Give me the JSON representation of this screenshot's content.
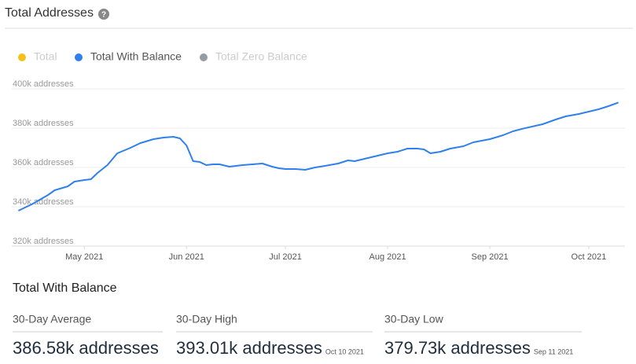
{
  "header": {
    "title": "Total Addresses",
    "help_icon": "?"
  },
  "chart_data": {
    "type": "line",
    "legend": [
      {
        "name": "Total",
        "color": "#f5b800",
        "active": false
      },
      {
        "name": "Total With Balance",
        "color": "#2f80ed",
        "active": true
      },
      {
        "name": "Total Zero Balance",
        "color": "#8a9099",
        "active": false
      }
    ],
    "x": [
      "2021-04-11",
      "2021-04-15",
      "2021-04-20",
      "2021-04-22",
      "2021-04-26",
      "2021-04-28",
      "2021-05-01",
      "2021-05-03",
      "2021-05-05",
      "2021-05-08",
      "2021-05-11",
      "2021-05-15",
      "2021-05-18",
      "2021-05-22",
      "2021-05-25",
      "2021-05-28",
      "2021-05-30",
      "2021-06-01",
      "2021-06-03",
      "2021-06-05",
      "2021-06-07",
      "2021-06-09",
      "2021-06-11",
      "2021-06-14",
      "2021-06-16",
      "2021-06-18",
      "2021-06-21",
      "2021-06-24",
      "2021-06-27",
      "2021-06-29",
      "2021-07-01",
      "2021-07-04",
      "2021-07-07",
      "2021-07-10",
      "2021-07-13",
      "2021-07-17",
      "2021-07-20",
      "2021-07-22",
      "2021-07-25",
      "2021-07-29",
      "2021-08-01",
      "2021-08-04",
      "2021-08-07",
      "2021-08-10",
      "2021-08-12",
      "2021-08-14",
      "2021-08-17",
      "2021-08-20",
      "2021-08-24",
      "2021-08-27",
      "2021-09-01",
      "2021-09-05",
      "2021-09-08",
      "2021-09-11",
      "2021-09-17",
      "2021-09-21",
      "2021-09-24",
      "2021-09-28",
      "2021-10-01",
      "2021-10-04",
      "2021-10-07",
      "2021-10-10"
    ],
    "series": [
      {
        "color": "#2f80ed",
        "values": [
          338000,
          341200,
          346000,
          348400,
          350400,
          352800,
          353600,
          354000,
          357200,
          361200,
          367200,
          370000,
          372400,
          374400,
          375200,
          375600,
          374800,
          371200,
          363200,
          362800,
          361200,
          361600,
          361600,
          360400,
          360800,
          361200,
          361600,
          362000,
          360400,
          359600,
          359200,
          359200,
          358800,
          360000,
          360800,
          362000,
          363600,
          363200,
          364400,
          366000,
          367200,
          368000,
          369600,
          369600,
          369200,
          367200,
          368000,
          369600,
          370800,
          372800,
          374400,
          376400,
          378400,
          379730,
          382000,
          384400,
          386000,
          387200,
          388400,
          389600,
          391200,
          393010
        ]
      }
    ],
    "xlim": [
      "2021-04-09",
      "2021-10-12"
    ],
    "xticks": [
      {
        "value": "2021-05-01",
        "label": "May 2021"
      },
      {
        "value": "2021-06-01",
        "label": "Jun 2021"
      },
      {
        "value": "2021-07-01",
        "label": "Jul 2021"
      },
      {
        "value": "2021-08-01",
        "label": "Aug 2021"
      },
      {
        "value": "2021-09-01",
        "label": "Sep 2021"
      },
      {
        "value": "2021-10-01",
        "label": "Oct 2021"
      }
    ],
    "ylim": [
      320000,
      400000
    ],
    "yticks": [
      {
        "value": 320000,
        "label": "320k addresses"
      },
      {
        "value": 340000,
        "label": "340k addresses"
      },
      {
        "value": 360000,
        "label": "360k addresses"
      },
      {
        "value": 380000,
        "label": "380k addresses"
      },
      {
        "value": 400000,
        "label": "400k addresses"
      }
    ],
    "grid": true
  },
  "stats": {
    "title": "Total With Balance",
    "items": [
      {
        "label": "30-Day Average",
        "value": "386.58k addresses"
      },
      {
        "label": "30-Day High",
        "value": "393.01k addresses",
        "date": "Oct 10 2021"
      },
      {
        "label": "30-Day Low",
        "value": "379.73k addresses",
        "date": "Sep 11 2021"
      }
    ]
  }
}
